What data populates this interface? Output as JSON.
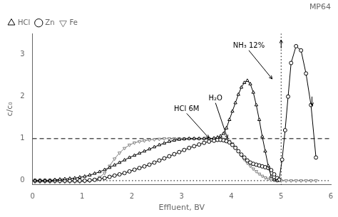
{
  "chart_data": {
    "type": "line",
    "title": "MP64",
    "xlabel": "Effluent, BV",
    "ylabel": "c/c₀",
    "xlim": [
      0,
      6
    ],
    "ylim": [
      -0.1,
      3.5
    ],
    "xticks": [
      0,
      1,
      2,
      3,
      4,
      5,
      6
    ],
    "yticks": [
      0,
      1,
      2,
      3
    ],
    "grid": false,
    "legend": "upper left",
    "series": [
      {
        "name": "HCl",
        "color": "#000000",
        "marker": "triangle_up",
        "line_style": "solid",
        "x": [
          0.05,
          0.15,
          0.25,
          0.35,
          0.45,
          0.55,
          0.65,
          0.75,
          0.85,
          0.95,
          1.05,
          1.15,
          1.25,
          1.35,
          1.45,
          1.55,
          1.65,
          1.75,
          1.85,
          1.95,
          2.05,
          2.15,
          2.25,
          2.35,
          2.45,
          2.55,
          2.65,
          2.75,
          2.85,
          2.95,
          3.05,
          3.15,
          3.25,
          3.35,
          3.45,
          3.55,
          3.65,
          3.72,
          3.78,
          3.84,
          3.9,
          3.96,
          4.02,
          4.08,
          4.14,
          4.2,
          4.26,
          4.32,
          4.38,
          4.44,
          4.5,
          4.56,
          4.62,
          4.68,
          4.74,
          4.8,
          4.86,
          4.92
        ],
        "values": [
          0.0,
          0.0,
          0.0,
          0.0,
          0.02,
          0.03,
          0.04,
          0.05,
          0.06,
          0.08,
          0.1,
          0.13,
          0.17,
          0.21,
          0.26,
          0.31,
          0.37,
          0.43,
          0.49,
          0.55,
          0.6,
          0.65,
          0.7,
          0.75,
          0.8,
          0.85,
          0.89,
          0.93,
          0.96,
          0.98,
          0.99,
          1.0,
          1.0,
          1.0,
          1.0,
          1.0,
          1.01,
          1.03,
          1.06,
          1.12,
          1.25,
          1.45,
          1.65,
          1.85,
          2.05,
          2.22,
          2.33,
          2.38,
          2.3,
          2.1,
          1.8,
          1.45,
          1.05,
          0.7,
          0.35,
          0.1,
          0.02,
          0.0
        ]
      },
      {
        "name": "Zn",
        "color": "#000000",
        "marker": "circle",
        "line_style": "solid",
        "x": [
          0.05,
          0.15,
          0.25,
          0.35,
          0.45,
          0.55,
          0.65,
          0.75,
          0.85,
          0.95,
          1.05,
          1.15,
          1.25,
          1.35,
          1.45,
          1.55,
          1.65,
          1.75,
          1.85,
          1.95,
          2.05,
          2.15,
          2.25,
          2.35,
          2.45,
          2.55,
          2.65,
          2.75,
          2.85,
          2.95,
          3.05,
          3.15,
          3.25,
          3.35,
          3.45,
          3.55,
          3.65,
          3.72,
          3.78,
          3.84,
          3.9,
          3.96,
          4.02,
          4.08,
          4.14,
          4.2,
          4.26,
          4.32,
          4.38,
          4.44,
          4.5,
          4.56,
          4.62,
          4.68,
          4.74,
          4.8,
          4.86,
          4.92,
          4.96,
          5.02,
          5.08,
          5.14,
          5.2,
          5.3,
          5.4,
          5.5,
          5.6,
          5.7
        ],
        "values": [
          0.0,
          0.0,
          0.0,
          0.0,
          0.0,
          0.0,
          0.0,
          0.0,
          0.0,
          0.0,
          0.0,
          0.01,
          0.02,
          0.04,
          0.06,
          0.09,
          0.12,
          0.15,
          0.18,
          0.22,
          0.26,
          0.3,
          0.34,
          0.38,
          0.43,
          0.48,
          0.53,
          0.58,
          0.63,
          0.68,
          0.73,
          0.78,
          0.82,
          0.86,
          0.9,
          0.93,
          0.95,
          0.97,
          0.97,
          0.96,
          0.94,
          0.91,
          0.85,
          0.78,
          0.7,
          0.62,
          0.55,
          0.48,
          0.43,
          0.4,
          0.38,
          0.36,
          0.34,
          0.32,
          0.3,
          0.25,
          0.15,
          0.06,
          0.02,
          0.5,
          1.2,
          2.0,
          2.8,
          3.2,
          3.1,
          2.55,
          1.8,
          0.55
        ]
      },
      {
        "name": "Fe",
        "color": "#808080",
        "marker": "triangle_down",
        "line_style": "solid",
        "x": [
          0.05,
          0.15,
          0.25,
          0.35,
          0.45,
          0.55,
          0.65,
          0.75,
          0.85,
          0.95,
          1.05,
          1.15,
          1.25,
          1.35,
          1.45,
          1.55,
          1.65,
          1.75,
          1.85,
          1.95,
          2.05,
          2.15,
          2.25,
          2.35,
          2.45,
          2.55,
          2.65,
          2.75,
          2.85,
          2.95,
          3.05,
          3.15,
          3.25,
          3.35,
          3.45,
          3.55,
          3.65,
          3.72,
          3.78,
          3.84,
          3.9,
          3.96,
          4.02,
          4.08,
          4.14,
          4.2,
          4.26,
          4.32,
          4.38,
          4.44,
          4.5,
          4.56,
          4.62,
          4.68,
          4.74,
          4.8,
          4.86,
          4.92,
          5.0,
          5.1,
          5.2,
          5.3,
          5.4,
          5.5,
          5.6,
          5.7
        ],
        "values": [
          -0.03,
          -0.03,
          -0.03,
          -0.03,
          -0.03,
          -0.03,
          -0.03,
          -0.03,
          -0.03,
          -0.03,
          -0.02,
          -0.01,
          0.02,
          0.08,
          0.18,
          0.35,
          0.52,
          0.66,
          0.77,
          0.85,
          0.9,
          0.93,
          0.95,
          0.97,
          0.98,
          0.99,
          1.0,
          1.0,
          1.0,
          1.0,
          1.0,
          1.0,
          1.0,
          1.0,
          1.0,
          1.0,
          1.0,
          1.0,
          1.0,
          0.99,
          0.97,
          0.94,
          0.88,
          0.8,
          0.7,
          0.6,
          0.5,
          0.42,
          0.35,
          0.28,
          0.22,
          0.16,
          0.11,
          0.07,
          0.04,
          0.02,
          0.01,
          0.0,
          0.0,
          0.0,
          0.0,
          0.0,
          0.0,
          0.0,
          0.0,
          0.0
        ]
      }
    ],
    "lines": [
      {
        "axis": "y",
        "value": 1.0,
        "color": "#000000",
        "line_style": "dashed"
      },
      {
        "axis": "y",
        "value": 0.0,
        "color": "#000000",
        "line_style": "dotted"
      },
      {
        "axis": "x",
        "value": 5.0,
        "color": "#000000",
        "line_style": "dotted"
      }
    ],
    "annotations": [
      {
        "text": "HCl 6M",
        "x": 3.1,
        "y": 1.6,
        "arrow_x": 3.55,
        "arrow_y": 1.01
      },
      {
        "text": "H₂O",
        "x": 3.68,
        "y": 1.85,
        "arrow_x": 3.92,
        "arrow_y": 1.01
      },
      {
        "text": "NH₃ 12%",
        "x": 4.35,
        "y": 3.1,
        "arrow_x": 4.82,
        "arrow_y": 2.42
      },
      {
        "x": 5.0,
        "y": 3.15,
        "arrow_x": 5.0,
        "arrow_y": 3.35
      },
      {
        "x": 5.62,
        "y": 2.0,
        "arrow_x": 5.62,
        "arrow_y": 1.78
      }
    ]
  }
}
